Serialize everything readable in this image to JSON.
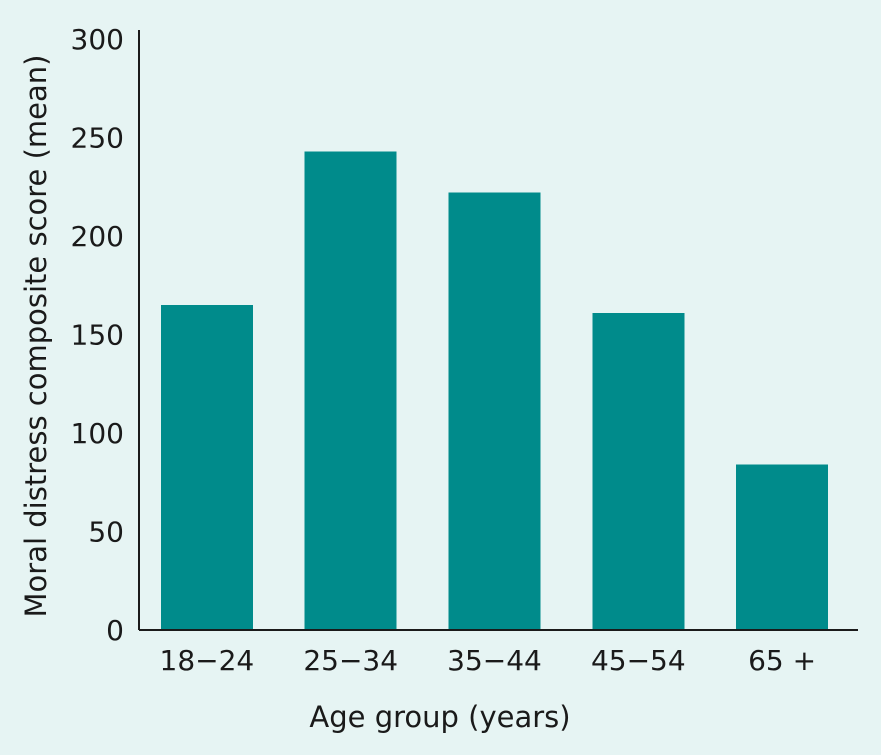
{
  "chart_data": {
    "type": "bar",
    "title": "",
    "xlabel": "Age group (years)",
    "ylabel": "Moral distress composite score (mean)",
    "categories": [
      "18−24",
      "25−34",
      "35−44",
      "45−54",
      "65 +"
    ],
    "values": [
      165,
      243,
      222,
      161,
      84
    ],
    "ylim": [
      0,
      300
    ],
    "yticks": [
      0,
      50,
      100,
      150,
      200,
      250,
      300
    ],
    "grid": false,
    "legend": "none",
    "bar_color": "#008b8b",
    "background_color": "#e6f4f3",
    "axis_color": "#1a1a1a"
  }
}
